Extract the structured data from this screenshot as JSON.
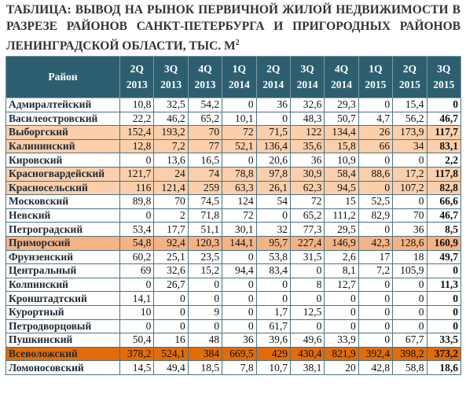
{
  "header": {
    "title": "ТАБЛИЦА: ВЫВОД НА РЫНОК ПЕРВИЧНОЙ ЖИЛОЙ НЕДВИЖИМОСТИ В РАЗРЕЗЕ РАЙОНОВ САНКТ-ПЕТЕРБУРГА И ПРИГОРОДНЫХ РАЙОНОВ ЛЕНИНГРАДСКОЙ ОБЛАСТИ, ТЫС. М",
    "title_superscript": "2"
  },
  "table": {
    "corner": "Район",
    "columns": [
      {
        "q": "2Q",
        "y": "2013"
      },
      {
        "q": "3Q",
        "y": "2013"
      },
      {
        "q": "4Q",
        "y": "2013"
      },
      {
        "q": "1Q",
        "y": "2014"
      },
      {
        "q": "2Q",
        "y": "2014"
      },
      {
        "q": "3Q",
        "y": "2014"
      },
      {
        "q": "4Q",
        "y": "2014"
      },
      {
        "q": "1Q",
        "y": "2015"
      },
      {
        "q": "2Q",
        "y": "2015"
      },
      {
        "q": "3Q",
        "y": "2015"
      }
    ],
    "rows": [
      {
        "name": "Адмиралтейский",
        "values": [
          "10,8",
          "32,5",
          "54,2",
          "0",
          "36",
          "32,6",
          "29,3",
          "0",
          "15,4",
          "0"
        ]
      },
      {
        "name": "Василеостровский",
        "values": [
          "22,2",
          "46,2",
          "65,2",
          "10,1",
          "0",
          "48,3",
          "50,7",
          "4,7",
          "56,2",
          "46,7"
        ]
      },
      {
        "name": "Выборгский",
        "highlight": "light",
        "values": [
          "152,4",
          "193,2",
          "70",
          "72",
          "71,5",
          "122",
          "134,4",
          "26",
          "173,9",
          "117,7"
        ]
      },
      {
        "name": "Калининский",
        "highlight": "light",
        "values": [
          "12,8",
          "7,2",
          "77",
          "52,1",
          "136,4",
          "35,6",
          "15,8",
          "66",
          "34",
          "83,1"
        ]
      },
      {
        "name": "Кировский",
        "values": [
          "0",
          "13,6",
          "16,5",
          "0",
          "20,6",
          "36",
          "10,9",
          "0",
          "0",
          "2,2"
        ]
      },
      {
        "name": "Красногвардейский",
        "highlight": "light",
        "values": [
          "121,7",
          "24",
          "74",
          "78,8",
          "97,8",
          "30,9",
          "58,4",
          "88,6",
          "17,2",
          "117,8"
        ]
      },
      {
        "name": "Красносельский",
        "highlight": "light",
        "values": [
          "116",
          "121,4",
          "259",
          "63,3",
          "26,1",
          "62,3",
          "94,5",
          "0",
          "107,2",
          "82,8"
        ]
      },
      {
        "name": "Московский",
        "values": [
          "89,8",
          "70",
          "74,5",
          "124",
          "54",
          "72",
          "15",
          "52,5",
          "0",
          "66,6"
        ]
      },
      {
        "name": "Невский",
        "values": [
          "0",
          "2",
          "71,8",
          "72",
          "0",
          "65,2",
          "111,2",
          "82,9",
          "70",
          "46,7"
        ]
      },
      {
        "name": "Петроградский",
        "values": [
          "53,4",
          "17,7",
          "51,1",
          "30,1",
          "32",
          "77,3",
          "29,5",
          "0",
          "36",
          "8,5"
        ]
      },
      {
        "name": "Приморский",
        "highlight": "medium",
        "values": [
          "54,8",
          "92,4",
          "120,3",
          "144,1",
          "95,7",
          "227,4",
          "146,9",
          "42,3",
          "128,6",
          "160,9"
        ]
      },
      {
        "name": "Фрунзенский",
        "values": [
          "60,2",
          "25,1",
          "23,5",
          "0",
          "53,8",
          "31,5",
          "2,6",
          "17",
          "18",
          "49,7"
        ]
      },
      {
        "name": "Центральный",
        "values": [
          "69",
          "32,6",
          "15,2",
          "94,4",
          "83,4",
          "0",
          "8,1",
          "7,2",
          "105,9",
          "0"
        ]
      },
      {
        "name": "Колпинский",
        "values": [
          "0",
          "26,7",
          "0",
          "0",
          "0",
          "8",
          "12,7",
          "0",
          "0",
          "11,3"
        ]
      },
      {
        "name": "Кронштадтский",
        "values": [
          "14,1",
          "0",
          "0",
          "0",
          "0",
          "0",
          "0",
          "0",
          "0",
          "0"
        ]
      },
      {
        "name": "Курортный",
        "values": [
          "10",
          "0",
          "9",
          "0",
          "1,7",
          "12,5",
          "0",
          "0",
          "0",
          "0"
        ]
      },
      {
        "name": "Петродворцовый",
        "values": [
          "0",
          "0",
          "0",
          "0",
          "61,7",
          "0",
          "0",
          "0",
          "0",
          "0"
        ]
      },
      {
        "name": "Пушкинский",
        "values": [
          "50,4",
          "16",
          "48",
          "36",
          "39,6",
          "49,6",
          "33,9",
          "0",
          "67,7",
          "33,5"
        ]
      },
      {
        "name": "Всеволожский",
        "highlight": "dark",
        "values": [
          "378,2",
          "524,1",
          "384",
          "669,5",
          "429",
          "430,4",
          "821,9",
          "392,4",
          "398,2",
          "373,2"
        ]
      },
      {
        "name": "Ломоносовский",
        "values": [
          "14,5",
          "49,4",
          "18,5",
          "7,8",
          "10,7",
          "38,1",
          "20",
          "42,8",
          "58,8",
          "18,6"
        ]
      }
    ]
  }
}
